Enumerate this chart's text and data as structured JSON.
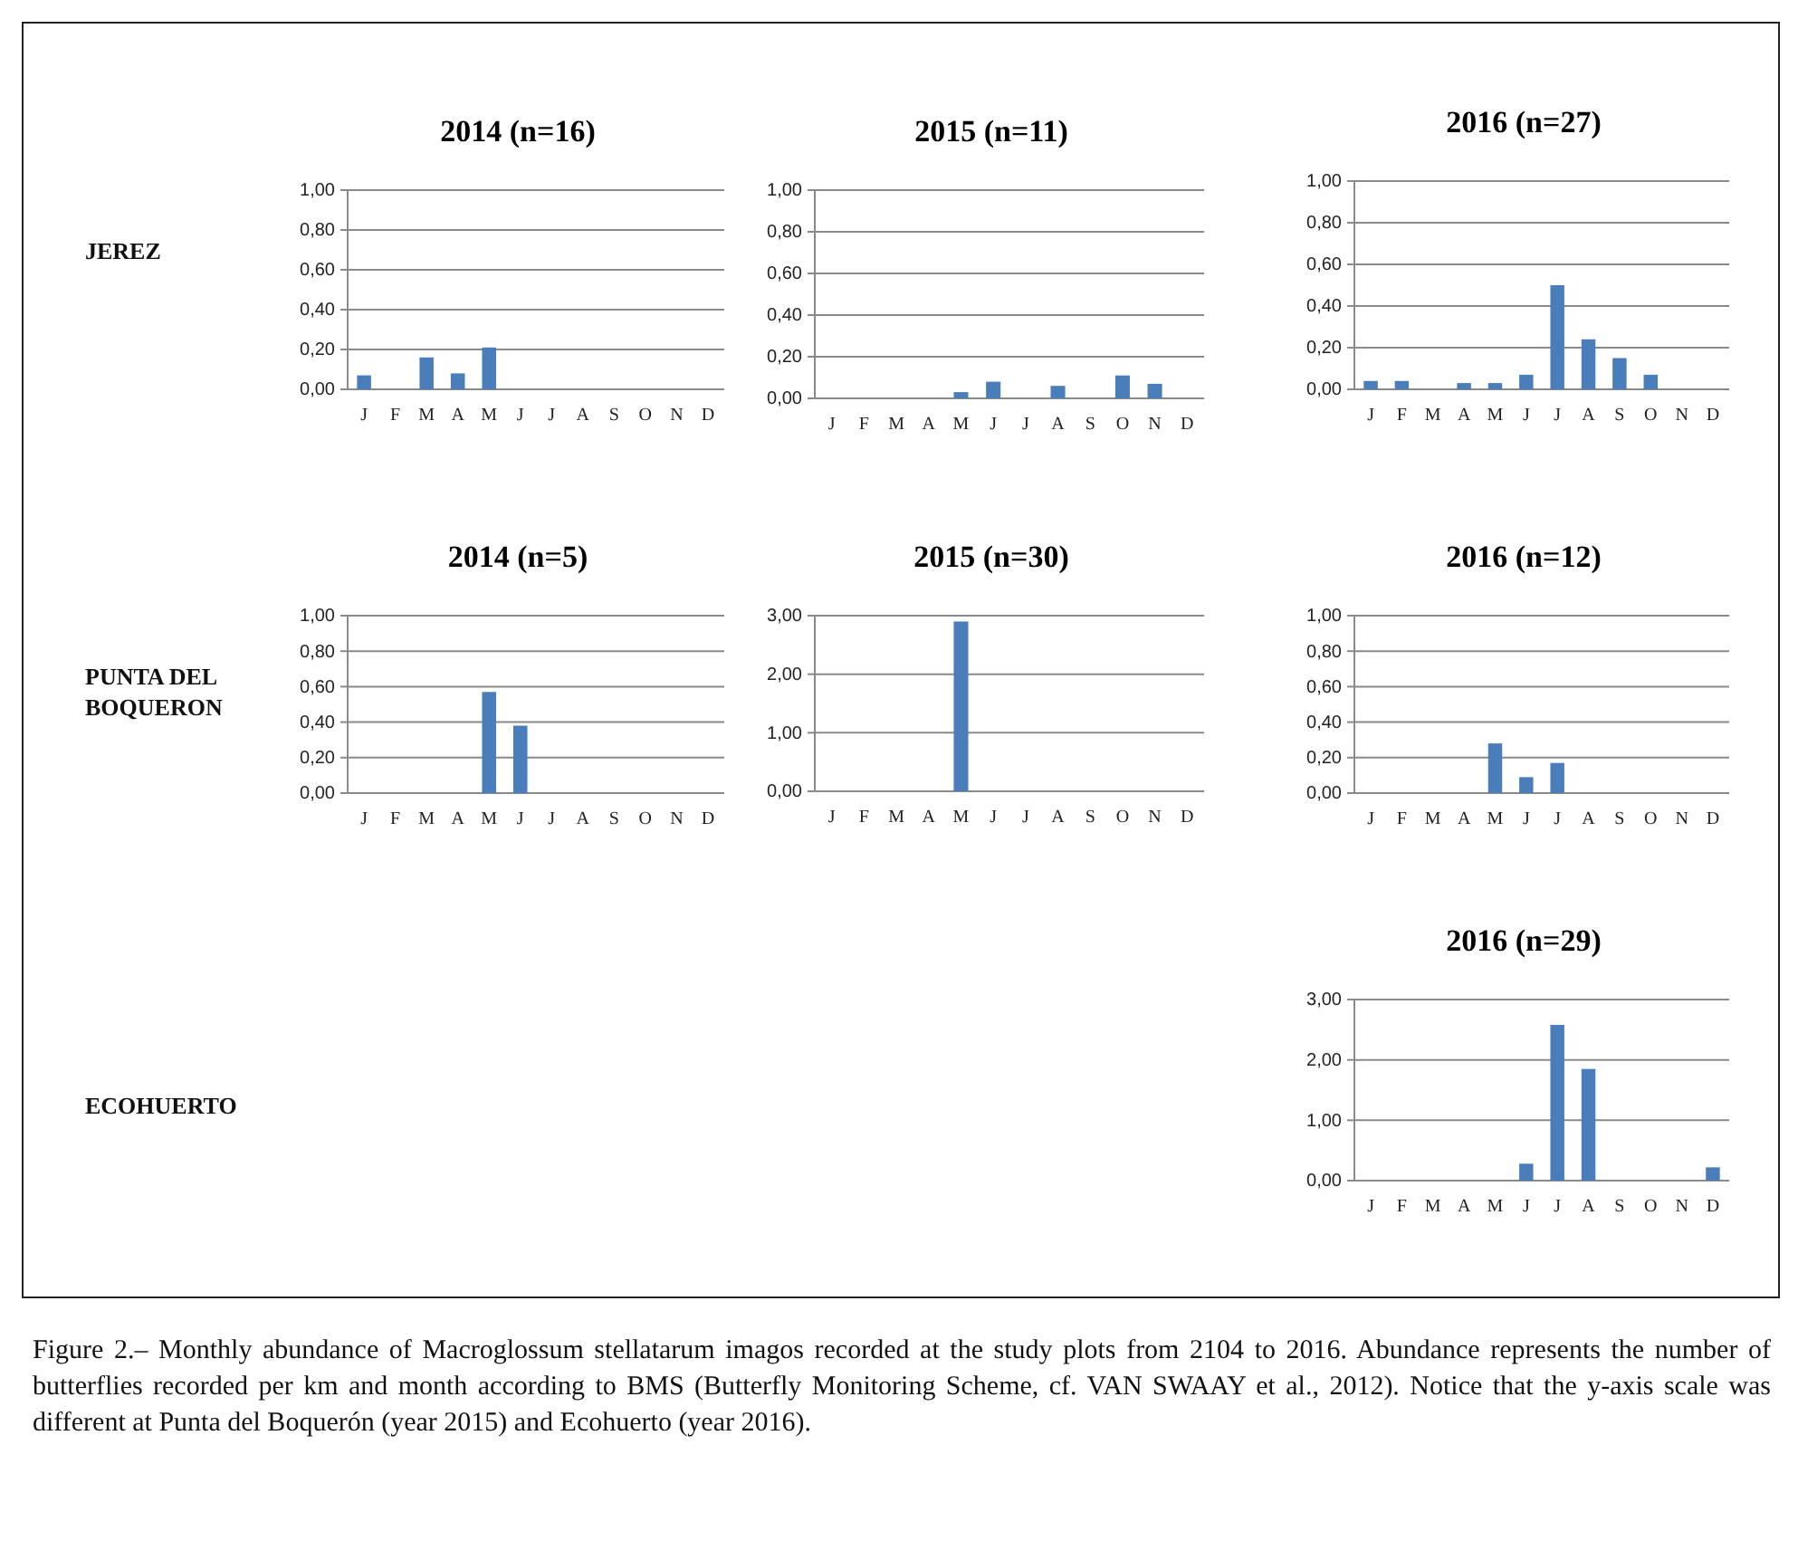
{
  "chart_data": [
    {
      "type": "bar",
      "title": "2014 (n=16)",
      "annotations": [
        "JEREZ"
      ],
      "categories": [
        "J",
        "F",
        "M",
        "A",
        "M",
        "J",
        "J",
        "A",
        "S",
        "O",
        "N",
        "D"
      ],
      "values": [
        0.07,
        0,
        0.16,
        0.08,
        0.21,
        0,
        0,
        0,
        0,
        0,
        0,
        0
      ],
      "color": "#4a7ebb",
      "ylim": [
        0,
        1
      ],
      "yticks": [
        {
          "value": 0,
          "label": "0,00"
        },
        {
          "value": 0.2,
          "label": "0,20"
        },
        {
          "value": 0.4,
          "label": "0,40"
        },
        {
          "value": 0.6,
          "label": "0,60"
        },
        {
          "value": 0.8,
          "label": "0,80"
        },
        {
          "value": 1,
          "label": "1,00"
        }
      ],
      "grid": "y"
    },
    {
      "type": "bar",
      "title": "2015 (n=11)",
      "categories": [
        "J",
        "F",
        "M",
        "A",
        "M",
        "J",
        "J",
        "A",
        "S",
        "O",
        "N",
        "D"
      ],
      "values": [
        0,
        0,
        0,
        0,
        0.03,
        0.08,
        0,
        0.06,
        0,
        0.11,
        0.07,
        0
      ],
      "color": "#4a7ebb",
      "ylim": [
        0,
        1
      ],
      "yticks": [
        {
          "value": 0,
          "label": "0,00"
        },
        {
          "value": 0.2,
          "label": "0,20"
        },
        {
          "value": 0.4,
          "label": "0,40"
        },
        {
          "value": 0.6,
          "label": "0,60"
        },
        {
          "value": 0.8,
          "label": "0,80"
        },
        {
          "value": 1,
          "label": "1,00"
        }
      ],
      "grid": "y"
    },
    {
      "type": "bar",
      "title": "2016 (n=27)",
      "categories": [
        "J",
        "F",
        "M",
        "A",
        "M",
        "J",
        "J",
        "A",
        "S",
        "O",
        "N",
        "D"
      ],
      "values": [
        0.04,
        0.04,
        0,
        0.03,
        0.03,
        0.07,
        0.5,
        0.24,
        0.15,
        0.07,
        0,
        0
      ],
      "color": "#4a7ebb",
      "ylim": [
        0,
        1
      ],
      "yticks": [
        {
          "value": 0,
          "label": "0,00"
        },
        {
          "value": 0.2,
          "label": "0,20"
        },
        {
          "value": 0.4,
          "label": "0,40"
        },
        {
          "value": 0.6,
          "label": "0,60"
        },
        {
          "value": 0.8,
          "label": "0,80"
        },
        {
          "value": 1,
          "label": "1,00"
        }
      ],
      "grid": "y"
    },
    {
      "type": "bar",
      "title": "2014 (n=5)",
      "annotations": [
        "PUNTA DEL BOQUERON"
      ],
      "categories": [
        "J",
        "F",
        "M",
        "A",
        "M",
        "J",
        "J",
        "A",
        "S",
        "O",
        "N",
        "D"
      ],
      "values": [
        0,
        0,
        0,
        0,
        0.57,
        0.38,
        0,
        0,
        0,
        0,
        0,
        0
      ],
      "color": "#4a7ebb",
      "ylim": [
        0,
        1
      ],
      "yticks": [
        {
          "value": 0,
          "label": "0,00"
        },
        {
          "value": 0.2,
          "label": "0,20"
        },
        {
          "value": 0.4,
          "label": "0,40"
        },
        {
          "value": 0.6,
          "label": "0,60"
        },
        {
          "value": 0.8,
          "label": "0,80"
        },
        {
          "value": 1,
          "label": "1,00"
        }
      ],
      "grid": "y"
    },
    {
      "type": "bar",
      "title": "2015 (n=30)",
      "categories": [
        "J",
        "F",
        "M",
        "A",
        "M",
        "J",
        "J",
        "A",
        "S",
        "O",
        "N",
        "D"
      ],
      "values": [
        0,
        0,
        0,
        0,
        2.9,
        0,
        0,
        0,
        0,
        0,
        0,
        0
      ],
      "color": "#4a7ebb",
      "ylim": [
        0,
        3
      ],
      "yticks": [
        {
          "value": 0,
          "label": "0,00"
        },
        {
          "value": 1,
          "label": "1,00"
        },
        {
          "value": 2,
          "label": "2,00"
        },
        {
          "value": 3,
          "label": "3,00"
        }
      ],
      "grid": "y"
    },
    {
      "type": "bar",
      "title": "2016 (n=12)",
      "categories": [
        "J",
        "F",
        "M",
        "A",
        "M",
        "J",
        "J",
        "A",
        "S",
        "O",
        "N",
        "D"
      ],
      "values": [
        0,
        0,
        0,
        0,
        0.28,
        0.09,
        0.17,
        0,
        0,
        0,
        0,
        0
      ],
      "color": "#4a7ebb",
      "ylim": [
        0,
        1
      ],
      "yticks": [
        {
          "value": 0,
          "label": "0,00"
        },
        {
          "value": 0.2,
          "label": "0,20"
        },
        {
          "value": 0.4,
          "label": "0,40"
        },
        {
          "value": 0.6,
          "label": "0,60"
        },
        {
          "value": 0.8,
          "label": "0,80"
        },
        {
          "value": 1,
          "label": "1,00"
        }
      ],
      "grid": "y"
    },
    {
      "type": "bar",
      "title": "2016 (n=29)",
      "annotations": [
        "ECOHUERTO",
        "Figure 2.– Monthly abundance of Macroglossum stellatarum imagos recorded at the study plots from 2104 to 2016. Abundance represents the number of butterflies recorded per km and month according to BMS (Butterfly Monitoring Scheme, cf. VAN SWAAY et al., 2012). Notice that the y-axis scale was different at Punta del Boquerón (year 2015) and Ecohuerto (year 2016)."
      ],
      "categories": [
        "J",
        "F",
        "M",
        "A",
        "M",
        "J",
        "J",
        "A",
        "S",
        "O",
        "N",
        "D"
      ],
      "values": [
        0,
        0,
        0,
        0,
        0,
        0.28,
        2.58,
        1.85,
        0,
        0,
        0,
        0.22
      ],
      "color": "#4a7ebb",
      "ylim": [
        0,
        3
      ],
      "yticks": [
        {
          "value": 0,
          "label": "0,00"
        },
        {
          "value": 1,
          "label": "1,00"
        },
        {
          "value": 2,
          "label": "2,00"
        },
        {
          "value": 3,
          "label": "3,00"
        }
      ],
      "grid": "y"
    }
  ]
}
